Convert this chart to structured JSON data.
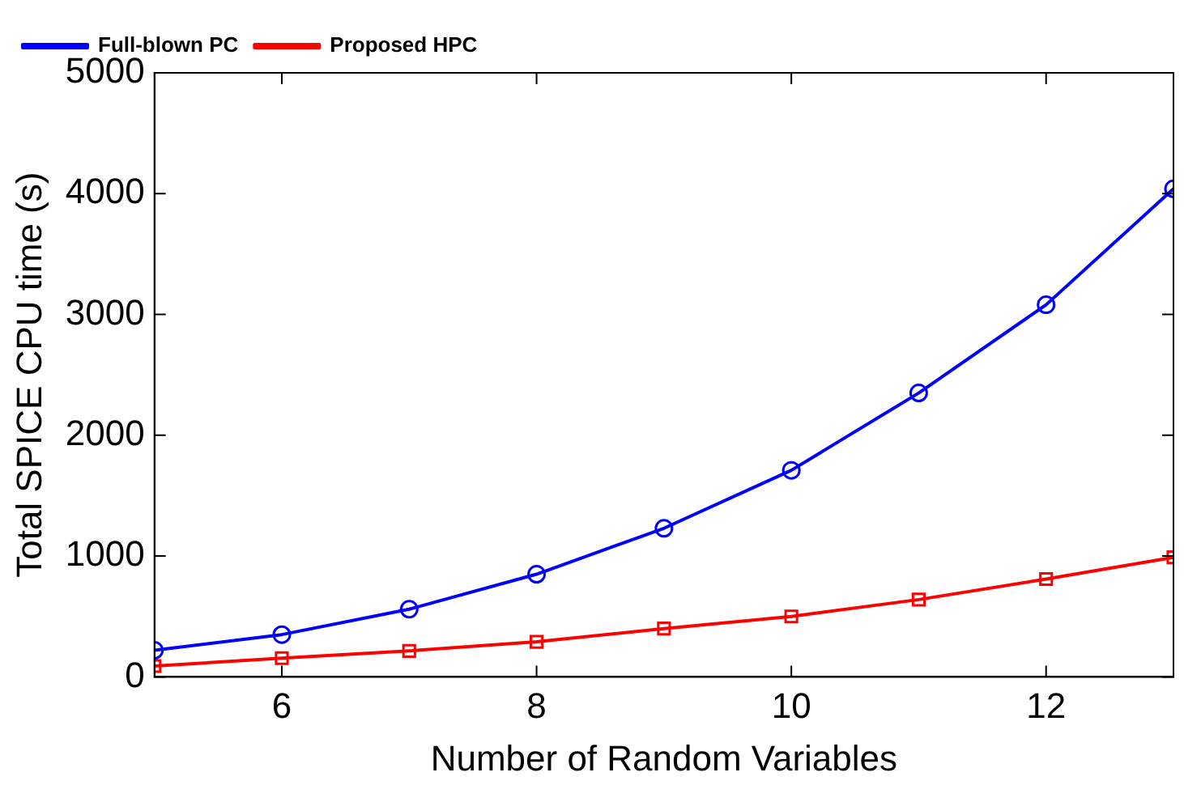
{
  "chart_data": {
    "type": "line",
    "xlabel": "Number of Random Variables",
    "ylabel": "Total SPICE CPU time (s)",
    "x": [
      5,
      6,
      7,
      8,
      9,
      10,
      11,
      12,
      13
    ],
    "series": [
      {
        "name": "Full-blown PC",
        "color": "#0000ff",
        "marker": "circle",
        "values": [
          220,
          350,
          560,
          850,
          1230,
          1710,
          2350,
          3080,
          4040
        ]
      },
      {
        "name": "Proposed HPC",
        "color": "#ff0000",
        "marker": "square",
        "values": [
          90,
          155,
          215,
          290,
          400,
          500,
          640,
          810,
          990
        ]
      }
    ],
    "xlim": [
      5,
      13
    ],
    "xticks": [
      6,
      8,
      10,
      12
    ],
    "ylim": [
      0,
      5000
    ],
    "yticks": [
      0,
      1000,
      2000,
      3000,
      4000,
      5000
    ],
    "grid": false,
    "legend": "top left",
    "line_style": "solid"
  }
}
